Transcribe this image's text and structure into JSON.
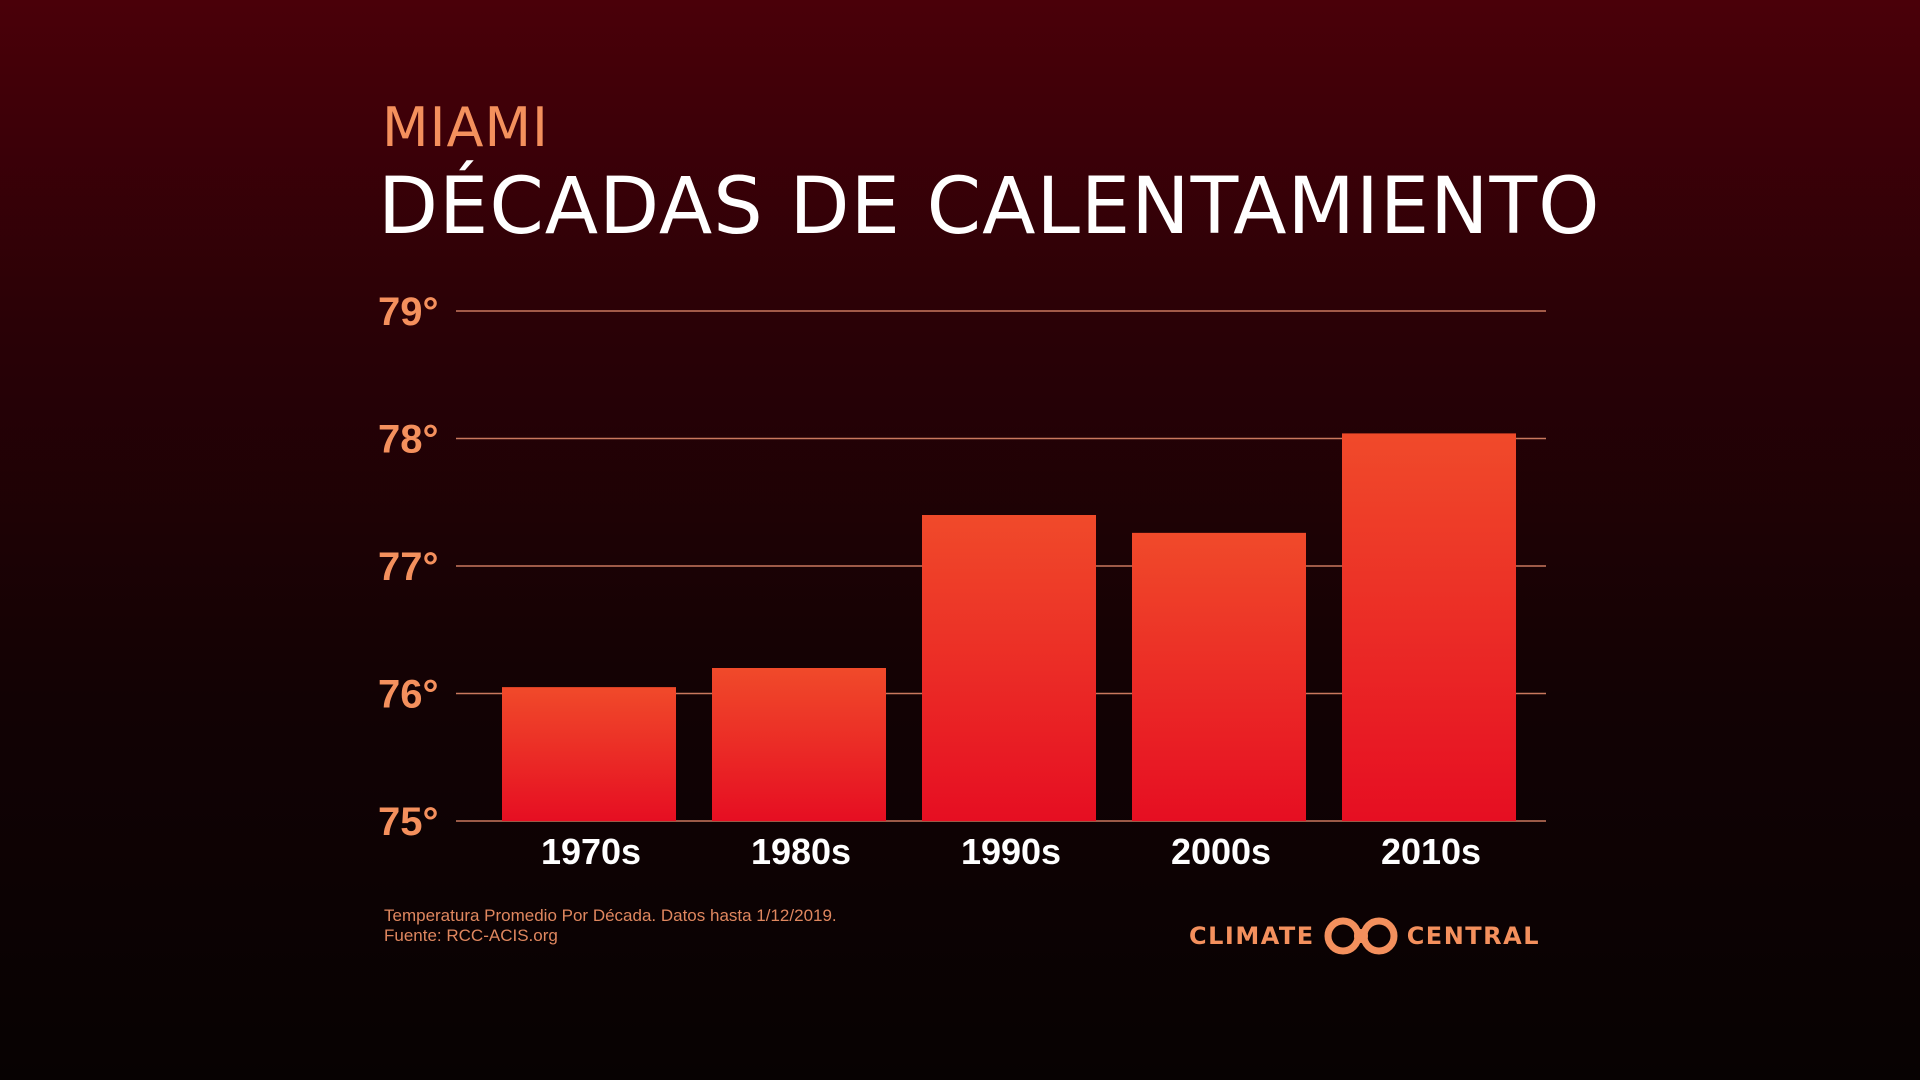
{
  "header": {
    "subtitle": "MIAMI",
    "title": "DÉCADAS DE CALENTAMIENTO"
  },
  "chart_data": {
    "type": "bar",
    "categories": [
      "1970s",
      "1980s",
      "1990s",
      "2000s",
      "2010s"
    ],
    "values": [
      76.05,
      76.2,
      77.4,
      77.26,
      78.04
    ],
    "ylim": [
      75,
      79
    ],
    "y_ticks": [
      75,
      76,
      77,
      78,
      79
    ],
    "y_tick_labels": [
      "75°",
      "76°",
      "77°",
      "78°",
      "79°"
    ],
    "grid": true,
    "colors": {
      "bar_top": "#f04a2a",
      "bar_bottom": "#e60e22",
      "grid": "#c9785e",
      "tick_label": "#f4905d",
      "category_label": "#ffffff"
    }
  },
  "footer": {
    "note_line1": "Temperatura Promedio Por Década. Datos hasta 1/12/2019.",
    "note_line2": "Fuente: RCC-ACIS.org",
    "logo_left": "CLIMATE",
    "logo_right": "CENTRAL",
    "logo_icon": "climate-central-rings-icon"
  }
}
